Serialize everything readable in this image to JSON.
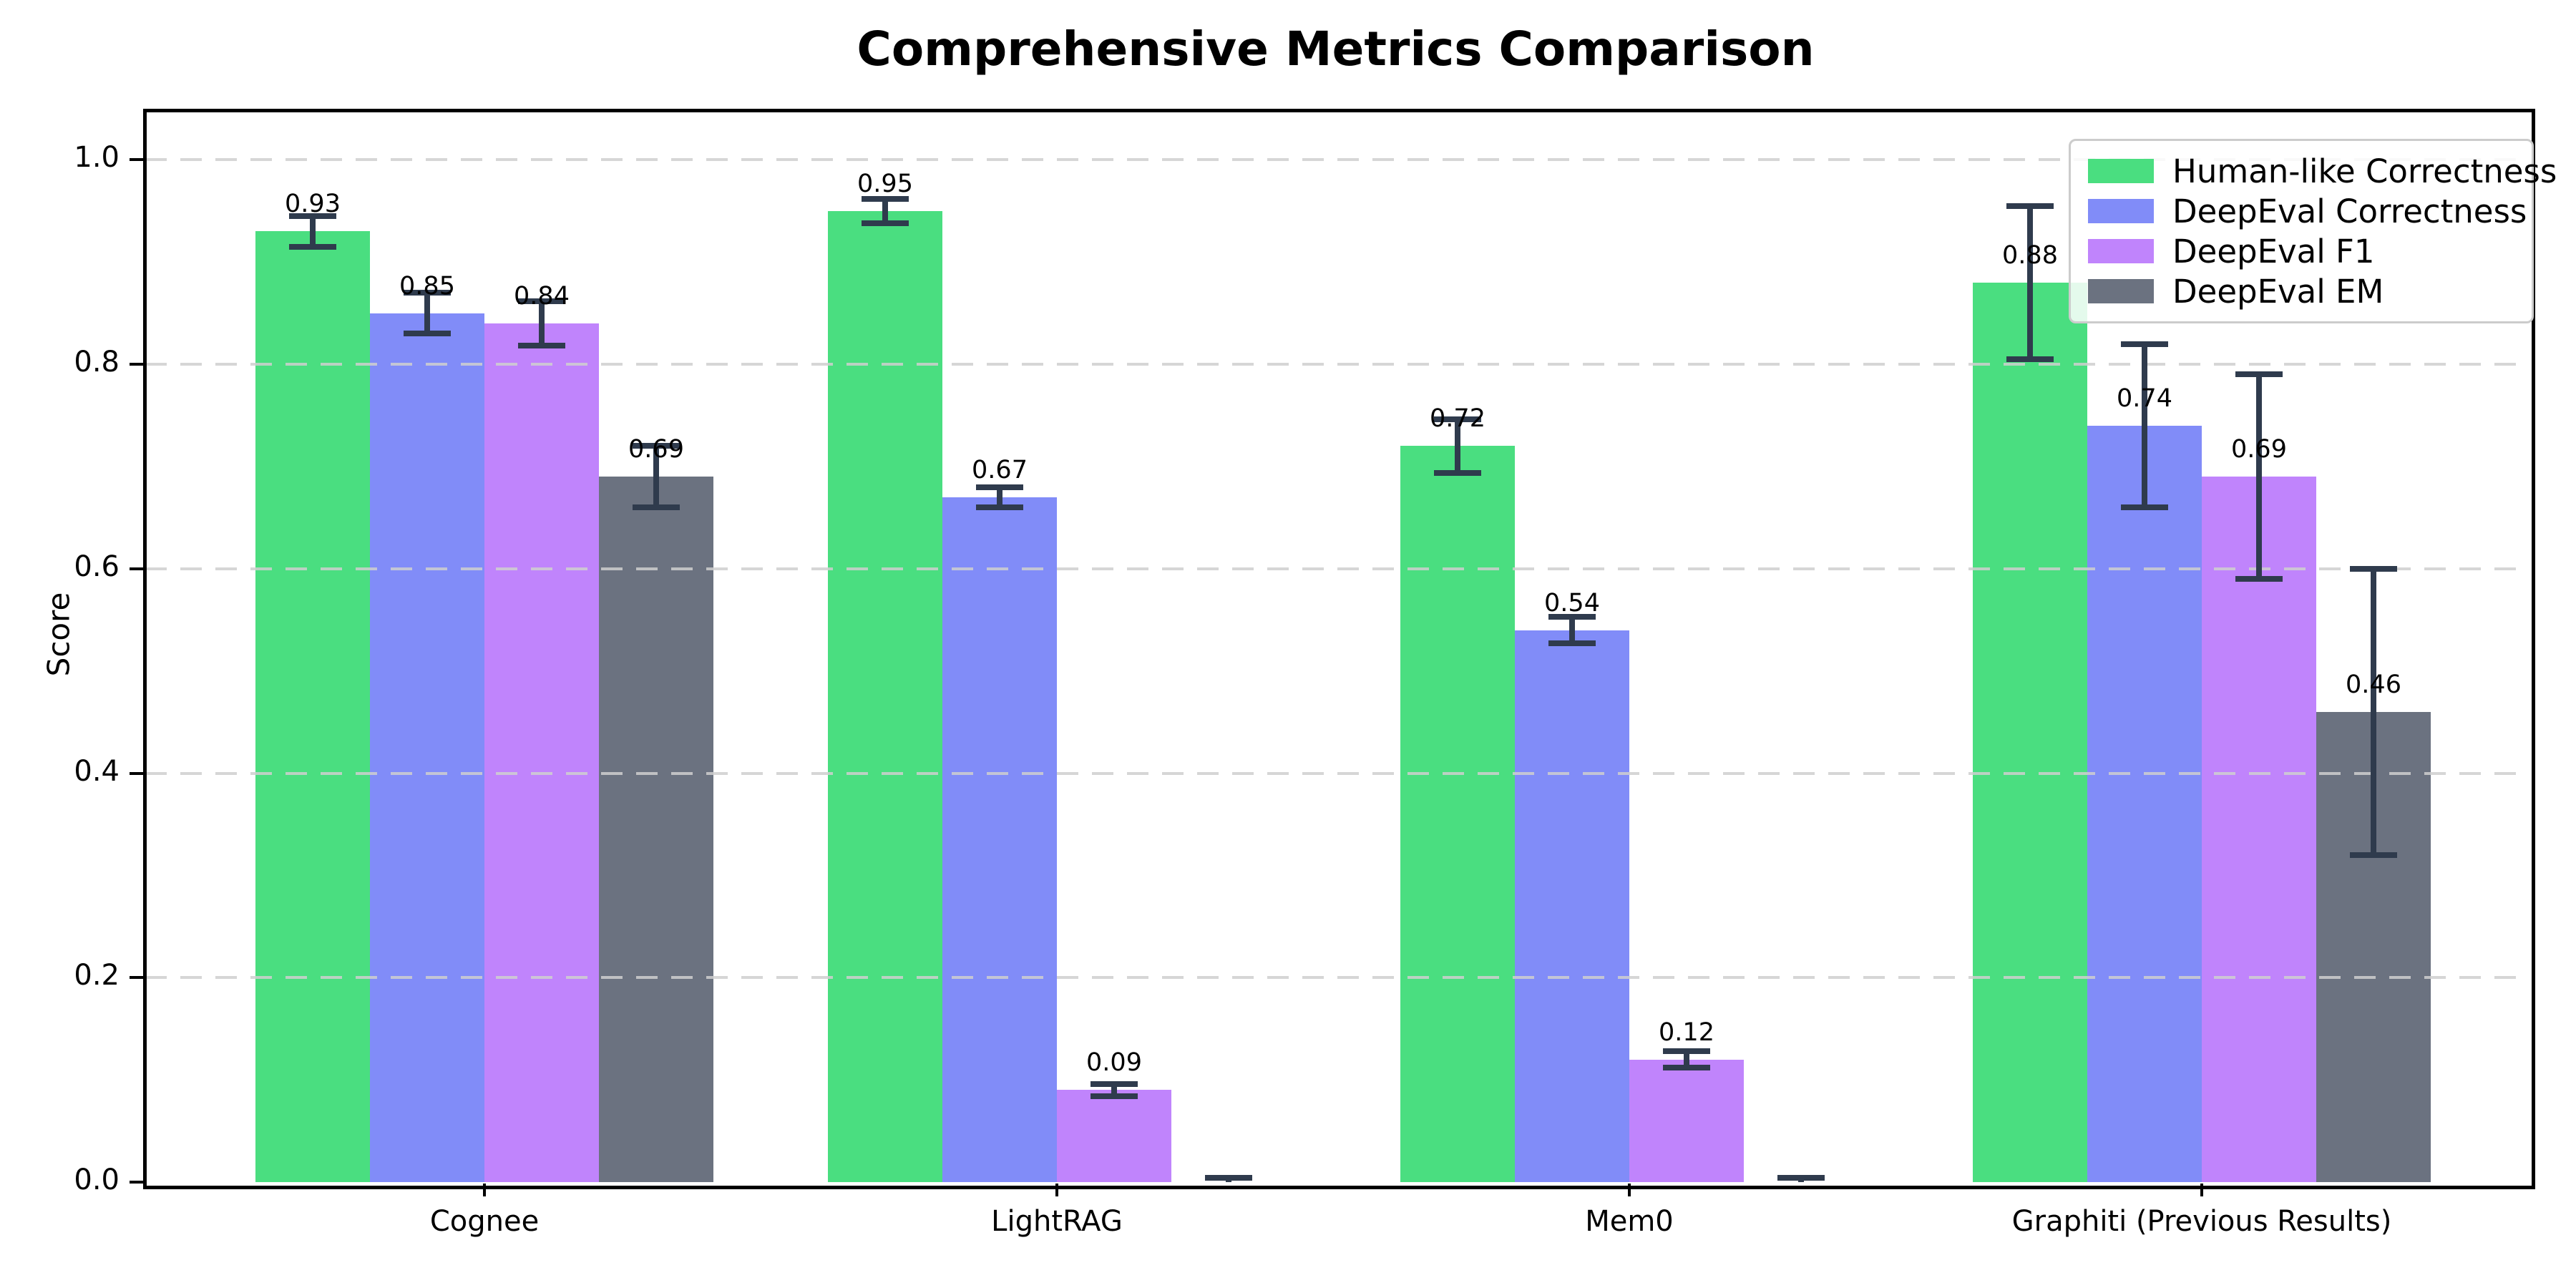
{
  "title": "Comprehensive Metrics Comparison",
  "ylabel": "Score",
  "chart_data": {
    "type": "bar",
    "categories": [
      "Cognee",
      "LightRAG",
      "Mem0",
      "Graphiti (Previous Results)"
    ],
    "series": [
      {
        "name": "Human-like Correctness",
        "color": "#4ade80",
        "values": [
          0.93,
          0.95,
          0.72,
          0.88
        ],
        "errors": [
          0.015,
          0.012,
          0.026,
          0.075
        ],
        "labels": [
          "0.93",
          "0.95",
          "0.72",
          "0.88"
        ]
      },
      {
        "name": "DeepEval Correctness",
        "color": "#818cf8",
        "values": [
          0.85,
          0.67,
          0.54,
          0.74
        ],
        "errors": [
          0.02,
          0.01,
          0.013,
          0.08
        ],
        "labels": [
          "0.85",
          "0.67",
          "0.54",
          "0.74"
        ]
      },
      {
        "name": "DeepEval F1",
        "color": "#c084fc",
        "values": [
          0.84,
          0.09,
          0.12,
          0.69
        ],
        "errors": [
          0.022,
          0.006,
          0.008,
          0.1
        ],
        "labels": [
          "0.84",
          "0.09",
          "0.12",
          "0.69"
        ]
      },
      {
        "name": "DeepEval EM",
        "color": "#6b7280",
        "values": [
          0.69,
          0.0,
          0.0,
          0.46
        ],
        "errors": [
          0.03,
          0.004,
          0.004,
          0.14
        ],
        "labels": [
          "0.69",
          null,
          null,
          "0.46"
        ]
      }
    ],
    "yticks": [
      "0.0",
      "0.2",
      "0.4",
      "0.6",
      "0.8",
      "1.0"
    ],
    "ylim": [
      0,
      1.05
    ],
    "grid": "horizontal-dashed",
    "legend_position": "upper-right",
    "error_bar_color": "#2f3b4d",
    "grid_color": "#cfcfcf",
    "spine_color": "#000000"
  }
}
